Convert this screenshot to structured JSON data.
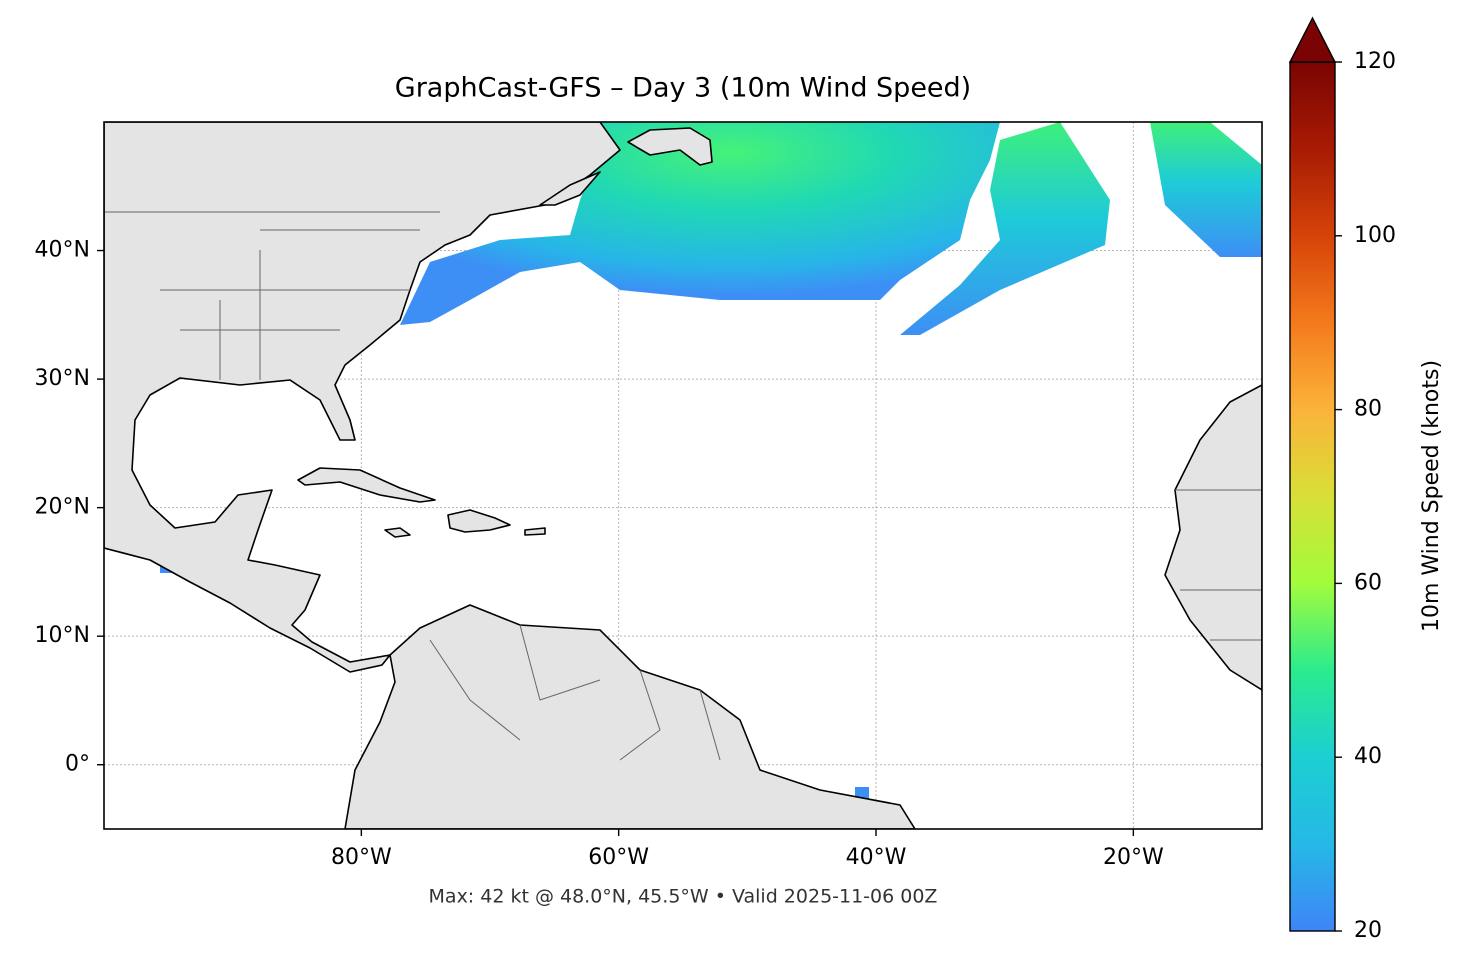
{
  "chart_data": {
    "type": "map",
    "title": "GraphCast-GFS – Day 3 (10m Wind Speed)",
    "footer": "Max: 42 kt @ 48.0°N, 45.5°W • Valid 2025-11-06 00Z",
    "xlim": [
      -100,
      -10
    ],
    "ylim": [
      -5,
      50
    ],
    "xticks": [
      {
        "value": -80,
        "label": "80°W"
      },
      {
        "value": -60,
        "label": "60°W"
      },
      {
        "value": -40,
        "label": "40°W"
      },
      {
        "value": -20,
        "label": "20°W"
      }
    ],
    "yticks": [
      {
        "value": 0,
        "label": "0°"
      },
      {
        "value": 10,
        "label": "10°N"
      },
      {
        "value": 20,
        "label": "20°N"
      },
      {
        "value": 30,
        "label": "30°N"
      },
      {
        "value": 40,
        "label": "40°N"
      }
    ],
    "grid": true,
    "colorbar": {
      "label": "10m Wind Speed (knots)",
      "lim": [
        20,
        120
      ],
      "ticks": [
        20,
        40,
        60,
        80,
        100,
        120
      ]
    }
  }
}
